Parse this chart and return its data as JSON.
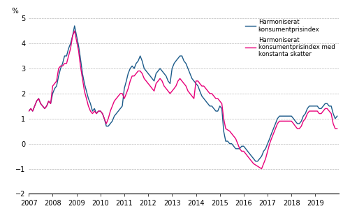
{
  "hicp": [
    1.3,
    1.4,
    1.3,
    1.5,
    1.7,
    1.8,
    1.6,
    1.5,
    1.4,
    1.5,
    1.7,
    1.6,
    2.0,
    2.2,
    2.3,
    2.7,
    3.0,
    3.2,
    3.5,
    3.5,
    3.8,
    4.0,
    4.3,
    4.7,
    4.3,
    3.9,
    3.4,
    2.8,
    2.4,
    2.1,
    1.8,
    1.6,
    1.3,
    1.4,
    1.2,
    1.3,
    1.3,
    1.2,
    1.0,
    0.7,
    0.7,
    0.8,
    0.9,
    1.1,
    1.2,
    1.3,
    1.4,
    1.5,
    2.2,
    2.5,
    2.8,
    3.0,
    3.1,
    3.0,
    3.2,
    3.3,
    3.5,
    3.3,
    3.0,
    2.9,
    2.8,
    2.7,
    2.6,
    2.5,
    2.8,
    2.9,
    3.0,
    2.9,
    2.8,
    2.7,
    2.5,
    2.4,
    3.0,
    3.2,
    3.3,
    3.4,
    3.5,
    3.5,
    3.3,
    3.2,
    3.0,
    2.8,
    2.6,
    2.5,
    2.4,
    2.3,
    2.1,
    1.9,
    1.8,
    1.7,
    1.6,
    1.5,
    1.5,
    1.4,
    1.3,
    1.3,
    1.5,
    1.4,
    0.5,
    0.1,
    0.1,
    0.0,
    0.0,
    -0.1,
    -0.2,
    -0.2,
    -0.2,
    -0.1,
    -0.1,
    -0.2,
    -0.3,
    -0.4,
    -0.5,
    -0.6,
    -0.7,
    -0.7,
    -0.6,
    -0.5,
    -0.3,
    -0.2,
    0.0,
    0.2,
    0.4,
    0.6,
    0.8,
    1.0,
    1.1,
    1.1,
    1.1,
    1.1,
    1.1,
    1.1,
    1.1,
    1.0,
    0.9,
    0.8,
    0.8,
    0.9,
    1.1,
    1.2,
    1.4,
    1.5,
    1.5,
    1.5,
    1.5,
    1.5,
    1.4,
    1.4,
    1.5,
    1.6,
    1.6,
    1.5,
    1.5,
    1.2,
    1.0,
    1.1
  ],
  "hicp_ct": [
    1.3,
    1.4,
    1.3,
    1.5,
    1.7,
    1.8,
    1.6,
    1.5,
    1.4,
    1.5,
    1.7,
    1.6,
    2.3,
    2.4,
    2.5,
    3.0,
    3.1,
    3.1,
    3.2,
    3.2,
    3.5,
    3.8,
    4.3,
    4.5,
    4.1,
    3.7,
    3.1,
    2.6,
    2.1,
    1.8,
    1.5,
    1.3,
    1.2,
    1.3,
    1.2,
    1.3,
    1.3,
    1.2,
    1.0,
    0.8,
    1.0,
    1.3,
    1.5,
    1.7,
    1.8,
    1.9,
    2.0,
    2.0,
    1.8,
    2.0,
    2.2,
    2.5,
    2.7,
    2.7,
    2.8,
    2.9,
    2.9,
    2.8,
    2.6,
    2.5,
    2.4,
    2.3,
    2.2,
    2.1,
    2.4,
    2.5,
    2.6,
    2.5,
    2.3,
    2.2,
    2.1,
    2.0,
    2.1,
    2.2,
    2.3,
    2.5,
    2.6,
    2.5,
    2.4,
    2.3,
    2.1,
    2.0,
    1.9,
    1.8,
    2.5,
    2.5,
    2.4,
    2.3,
    2.3,
    2.2,
    2.1,
    2.0,
    2.0,
    1.9,
    1.8,
    1.8,
    1.7,
    1.6,
    1.0,
    0.6,
    0.55,
    0.5,
    0.4,
    0.3,
    0.2,
    0.0,
    -0.2,
    -0.3,
    -0.3,
    -0.4,
    -0.5,
    -0.6,
    -0.7,
    -0.8,
    -0.85,
    -0.9,
    -0.95,
    -1.0,
    -0.8,
    -0.6,
    -0.3,
    0.0,
    0.2,
    0.4,
    0.6,
    0.8,
    0.9,
    0.9,
    0.9,
    0.9,
    0.9,
    0.9,
    0.9,
    0.8,
    0.7,
    0.6,
    0.6,
    0.7,
    0.9,
    1.0,
    1.2,
    1.3,
    1.3,
    1.3,
    1.3,
    1.3,
    1.2,
    1.2,
    1.3,
    1.4,
    1.4,
    1.3,
    1.2,
    0.8,
    0.6,
    0.6
  ],
  "hicp_color": "#1c5b8a",
  "hicp_ct_color": "#e8007a",
  "ylabel": "%",
  "ylim": [
    -2,
    5
  ],
  "yticks": [
    -2,
    -1,
    0,
    1,
    2,
    3,
    4,
    5
  ],
  "legend1": "Harmoniserat\nkonsumentprisindex",
  "legend2": "Harmoniserat\nkonsumentprisindex med\nkonstanta skatter",
  "bg_color": "#ffffff",
  "grid_color": "#bbbbbb",
  "line_width": 1.0
}
